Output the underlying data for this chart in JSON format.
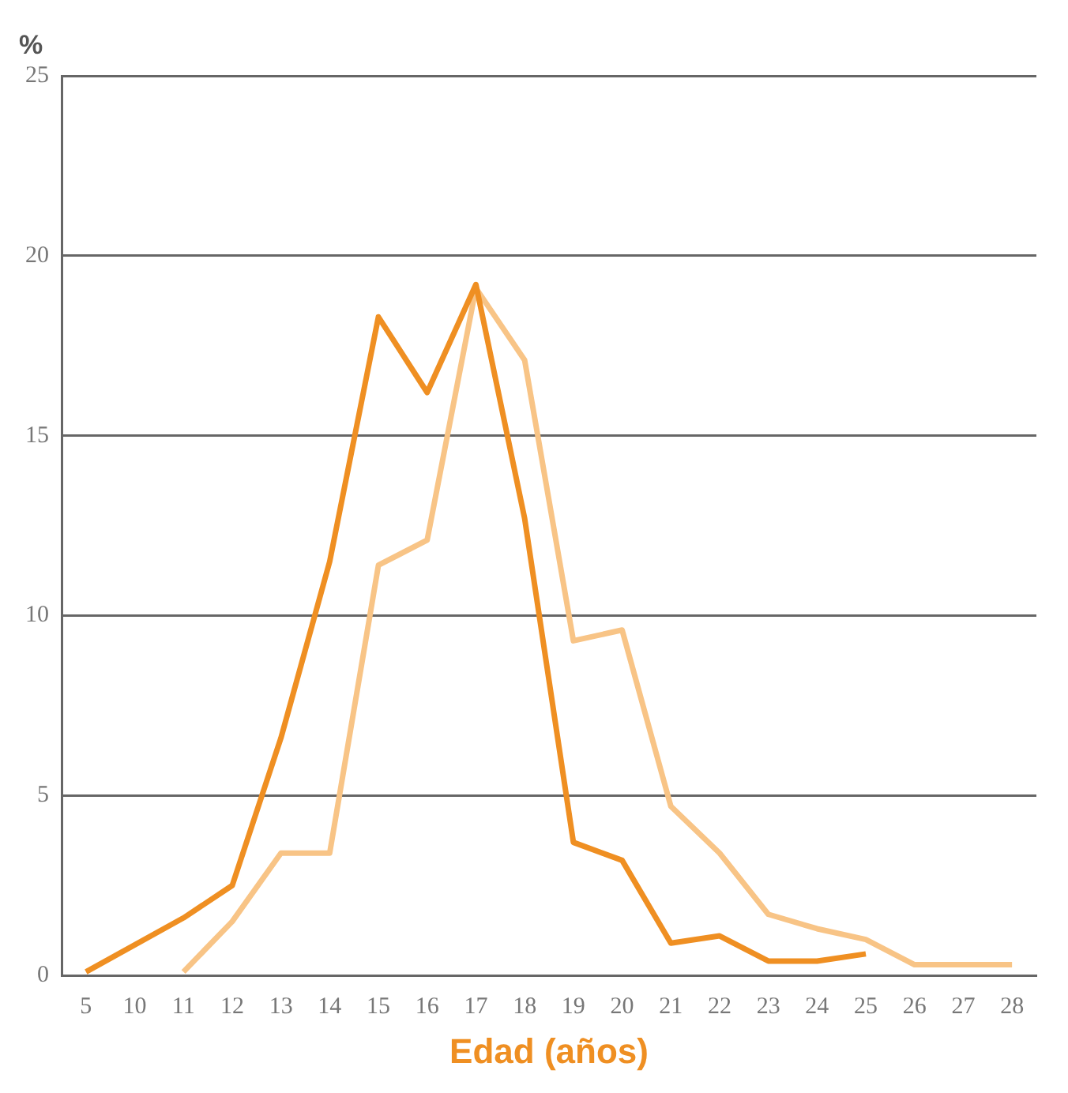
{
  "chart_data": {
    "type": "line",
    "ylabel": "%",
    "xlabel": "Edad (años)",
    "categories": [
      "5",
      "10",
      "11",
      "12",
      "13",
      "14",
      "15",
      "16",
      "17",
      "18",
      "19",
      "20",
      "21",
      "22",
      "23",
      "24",
      "25",
      "26",
      "27",
      "28"
    ],
    "series": [
      {
        "color": "#ef8f22",
        "values": [
          0.1,
          null,
          1.6,
          2.5,
          6.6,
          11.5,
          18.3,
          16.2,
          19.2,
          12.7,
          3.7,
          3.2,
          0.9,
          1.1,
          0.4,
          0.4,
          0.6,
          null,
          null,
          null
        ]
      },
      {
        "color": "#f8c486",
        "values": [
          null,
          null,
          0.1,
          1.5,
          3.4,
          3.4,
          11.4,
          12.1,
          19.1,
          17.1,
          9.3,
          9.6,
          4.7,
          3.4,
          1.7,
          1.3,
          1.0,
          0.3,
          0.3,
          0.3
        ]
      }
    ],
    "ylim": [
      0,
      25
    ],
    "yticks": [
      0,
      5,
      10,
      15,
      20,
      25
    ],
    "grid": "y",
    "legend": false,
    "marker": "none",
    "line_style": "solid"
  }
}
